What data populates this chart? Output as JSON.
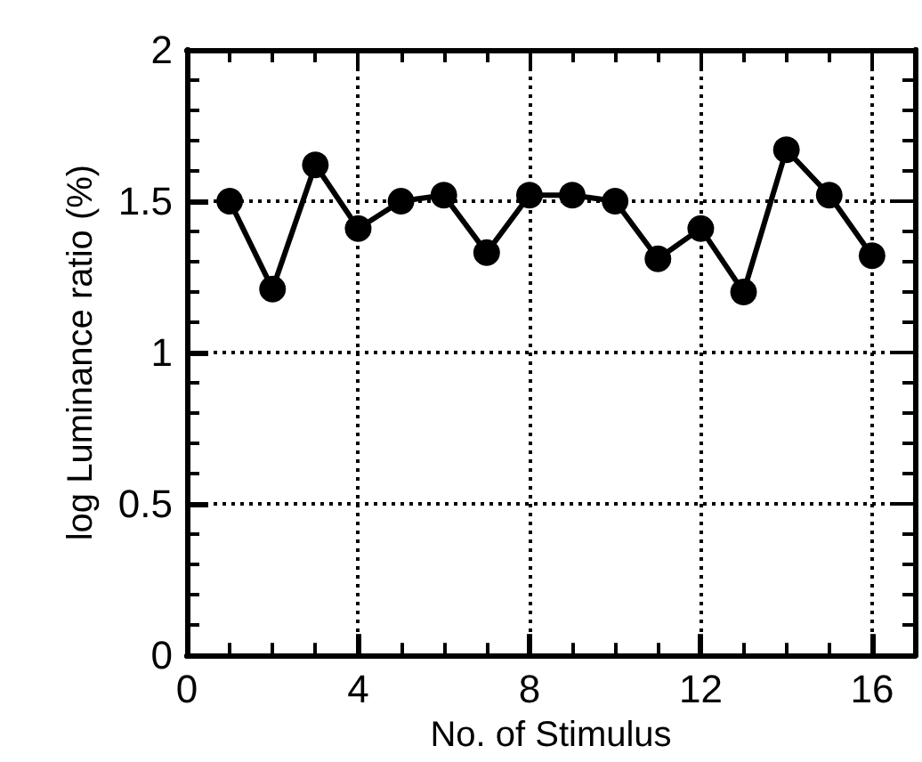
{
  "chart_data": {
    "type": "line",
    "xlabel": "No. of Stimulus",
    "ylabel": "log Luminance ratio (%)",
    "x": [
      1,
      2,
      3,
      4,
      5,
      6,
      7,
      8,
      9,
      10,
      11,
      12,
      13,
      14,
      15,
      16
    ],
    "series": [
      {
        "color": "#000000",
        "values": [
          1.5,
          1.21,
          1.62,
          1.41,
          1.5,
          1.52,
          1.33,
          1.52,
          1.52,
          1.5,
          1.31,
          1.41,
          1.2,
          1.67,
          1.52,
          1.32
        ]
      }
    ],
    "xlim": [
      0,
      17
    ],
    "xticks": [
      0,
      4,
      8,
      12,
      16
    ],
    "ylim": [
      0,
      2
    ],
    "yticks": [
      0,
      0.5,
      1,
      1.5,
      2
    ],
    "grid": true,
    "marker": "circle",
    "line_style": "solid"
  }
}
